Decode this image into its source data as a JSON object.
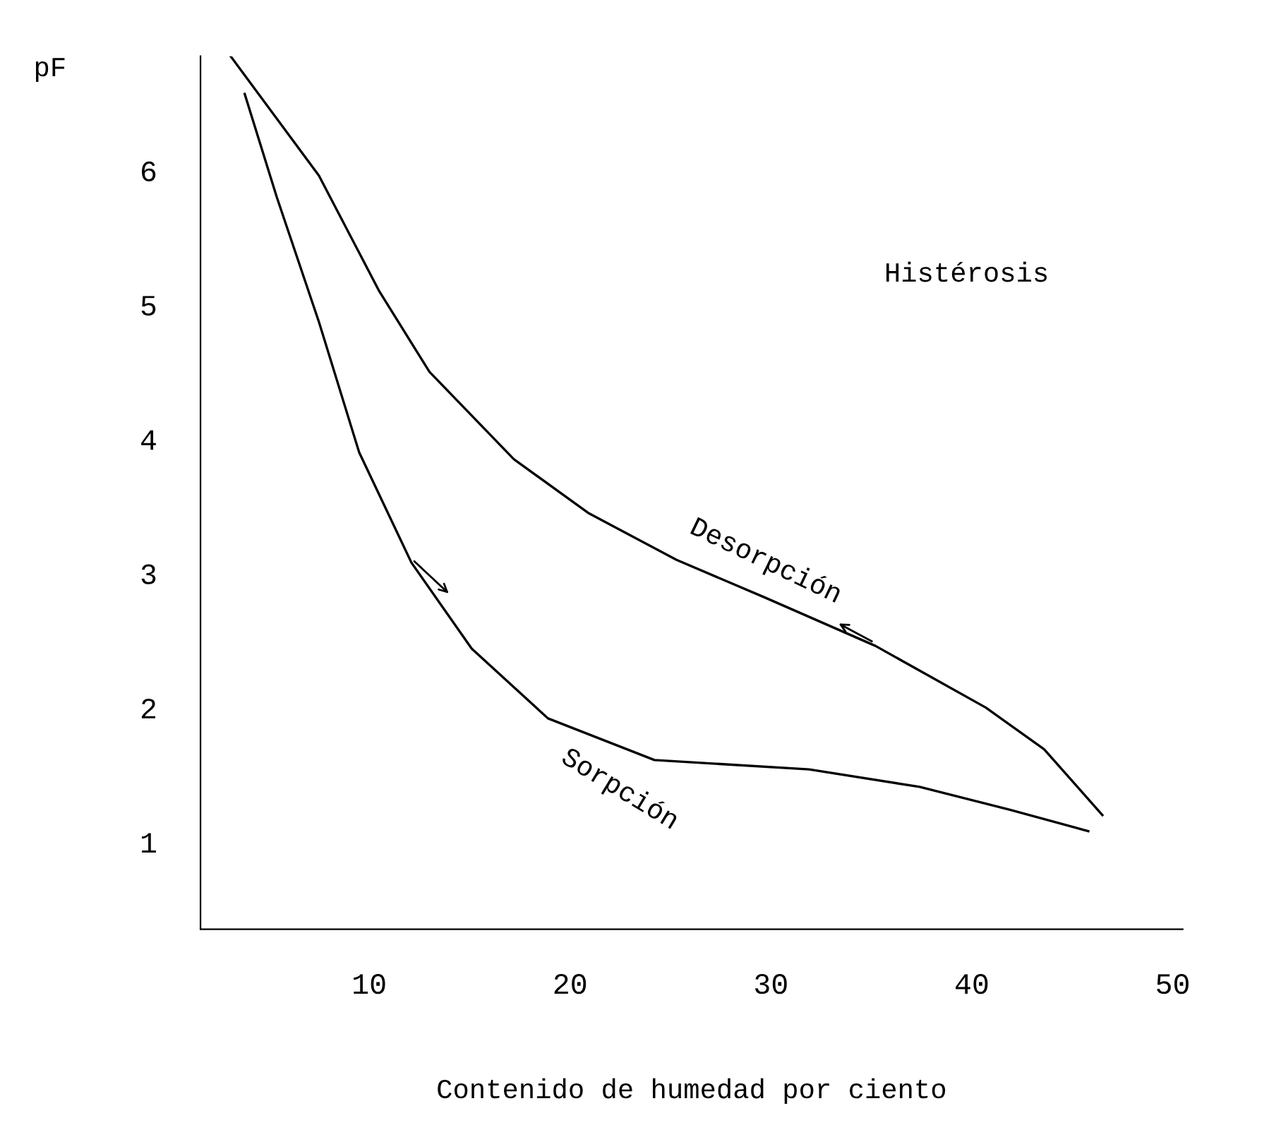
{
  "chart_data": {
    "type": "line",
    "ylabel": "pF",
    "xlabel": "Contenido de humedad por ciento",
    "annotations": [
      "Histérosis"
    ],
    "xlim": [
      1.6,
      50.5
    ],
    "ylim": [
      0.35,
      6.85
    ],
    "xticks": [
      10,
      20,
      30,
      40,
      50
    ],
    "yticks": [
      1,
      2,
      3,
      4,
      5,
      6
    ],
    "grid": false,
    "marker": "none",
    "line_style": "solid",
    "series": [
      {
        "name": "Desorpción",
        "color": "#000000",
        "x": [
          3.1,
          7.5,
          10.5,
          13.0,
          17.2,
          20.9,
          25.3,
          29.7,
          35.2,
          40.7,
          43.6,
          46.5
        ],
        "values": [
          6.85,
          5.96,
          5.1,
          4.5,
          3.85,
          3.45,
          3.1,
          2.82,
          2.46,
          2.0,
          1.69,
          1.2
        ]
      },
      {
        "name": "Sorpción",
        "color": "#000000",
        "x": [
          3.8,
          5.4,
          7.5,
          9.5,
          12.1,
          15.1,
          18.9,
          24.2,
          31.9,
          37.4,
          41.9,
          45.8
        ],
        "values": [
          6.57,
          5.8,
          4.87,
          3.9,
          3.08,
          2.44,
          1.92,
          1.61,
          1.54,
          1.41,
          1.24,
          1.08
        ]
      }
    ]
  }
}
